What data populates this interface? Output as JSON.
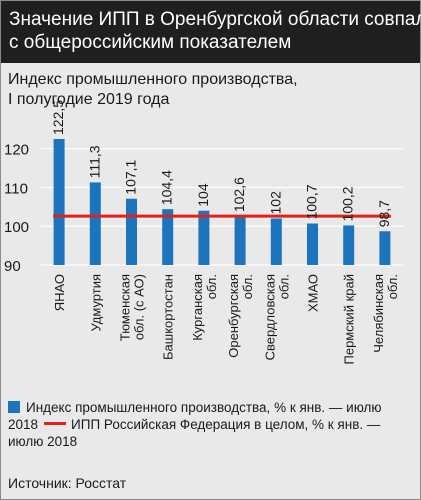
{
  "header": {
    "title_line1": "Значение ИПП в Оренбургской области совпало",
    "title_line2": "с общероссийским показателем"
  },
  "chart_data": {
    "type": "bar",
    "title_line1": "Индекс промышленного производства,",
    "title_line2": "I полугодие 2019 года",
    "categories": [
      [
        "ЯНАО"
      ],
      [
        "Удмуртия"
      ],
      [
        "Тюменская",
        "обл. (с АО)"
      ],
      [
        "Башкортостан"
      ],
      [
        "Курганская",
        "обл."
      ],
      [
        "Оренбургская",
        "обл."
      ],
      [
        "Свердловская",
        "обл."
      ],
      [
        "ХМАО"
      ],
      [
        "Пермский край"
      ],
      [
        "Челябинская",
        "обл."
      ]
    ],
    "values": [
      122.5,
      111.3,
      107.1,
      104.4,
      104,
      102.6,
      102,
      100.7,
      100.2,
      98.7
    ],
    "value_labels": [
      "122,5",
      "111,3",
      "107,1",
      "104,4",
      "104",
      "102,6",
      "102",
      "100,7",
      "100,2",
      "98,7"
    ],
    "reference_value": 102.6,
    "yticks": [
      90,
      100,
      110,
      120
    ],
    "ylim": [
      90,
      125
    ],
    "grid": true,
    "colors": {
      "bar": "#1c75bc",
      "line": "#e32119",
      "grid": "#ffffff"
    },
    "legend": {
      "bar_label_line1": "Индекс промышленного производства, %  к янв. — июлю",
      "bar_label_line2_prefix": "2018",
      "line_label": "ИПП  Российская Федерация в целом, %  к янв. —",
      "line_label_cont": "июлю 2018"
    }
  },
  "source": "Источник: Росстат"
}
